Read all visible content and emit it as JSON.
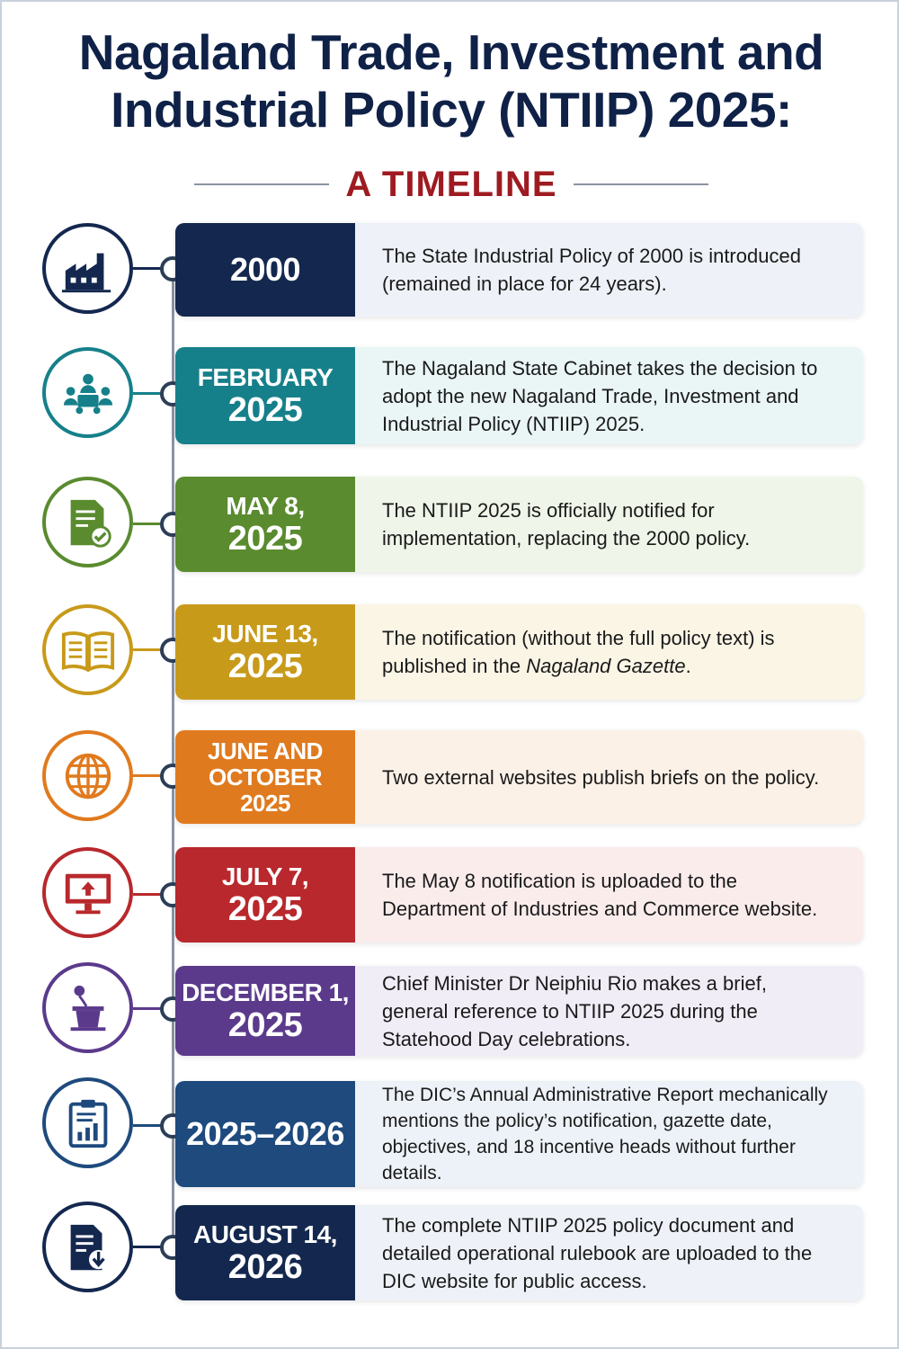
{
  "title_line1": "Nagaland Trade, Investment and",
  "title_line2": "Industrial Policy (NTIIP) 2025:",
  "subtitle": "A TIMELINE",
  "events": [
    {
      "date_line1": "2000",
      "date_line2": "",
      "description": "The State Industrial Policy of 2000 is introduced (remained in place for 24 years).",
      "icon": "factory-icon",
      "color": "#14284f",
      "tint": "#eef2f8"
    },
    {
      "date_line1": "FEBRUARY",
      "date_line2": "2025",
      "description": "The Nagaland State Cabinet takes the decision to adopt the new Nagaland Trade, Investment and Industrial Policy (NTIIP) 2025.",
      "icon": "meeting-icon",
      "color": "#16808a",
      "tint": "#eaf5f6"
    },
    {
      "date_line1": "MAY 8,",
      "date_line2": "2025",
      "description": "The NTIIP 2025 is officially notified for implementation, replacing the 2000 policy.",
      "icon": "approved-document-icon",
      "color": "#5a8b2f",
      "tint": "#eff5e8"
    },
    {
      "date_line1": "JUNE 13,",
      "date_line2": "2025",
      "description_before": "The notification (without the full policy text) is published in the ",
      "description_italic": "Nagaland Gazette",
      "description_after": ".",
      "icon": "open-book-icon",
      "color": "#c89a1a",
      "tint": "#fbf5e6"
    },
    {
      "date_line1": "JUNE AND",
      "date_line2": "OCTOBER",
      "date_line3": "2025",
      "description": "Two external websites publish briefs on the policy.",
      "icon": "globe-icon",
      "color": "#e07a1f",
      "tint": "#fcf1e7"
    },
    {
      "date_line1": "JULY 7,",
      "date_line2": "2025",
      "description": "The May 8 notification is uploaded to the Department of Industries and Commerce website.",
      "icon": "monitor-upload-icon",
      "color": "#b8282c",
      "tint": "#fbecec"
    },
    {
      "date_line1": "DECEMBER 1,",
      "date_line2": "2025",
      "description": "Chief Minister Dr Neiphiu Rio makes a brief, general reference to NTIIP 2025 during the Statehood Day celebrations.",
      "icon": "podium-icon",
      "color": "#5b3a8c",
      "tint": "#f1edf7"
    },
    {
      "date_line1": "2025–2026",
      "date_line2": "",
      "description": "The DIC’s Annual Administrative Report mechanically mentions the policy’s notification, gazette date, objectives, and 18 incentive heads without further details.",
      "icon": "clipboard-report-icon",
      "color": "#1e4a7d",
      "tint": "#edf2f8"
    },
    {
      "date_line1": "AUGUST 14,",
      "date_line2": "2026",
      "description": "The complete NTIIP 2025 policy document and detailed operational rulebook are uploaded to the DIC website for public access.",
      "icon": "document-download-icon",
      "color": "#14284f",
      "tint": "#eef2f8"
    }
  ]
}
